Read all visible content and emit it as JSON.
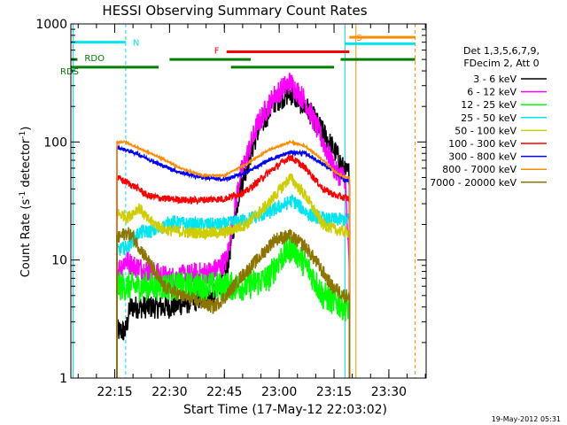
{
  "chart_data": {
    "type": "line",
    "title": "HESSI Observing Summary Count Rates",
    "xlabel": "Start Time (17-May-12 22:03:02)",
    "ylabel_main": "Count Rate (s",
    "ylabel_sup1": "-1",
    "ylabel_mid": " detector",
    "ylabel_sup2": "-1",
    "ylabel_end": ")",
    "y_scale": "log",
    "ylim": [
      1,
      1000
    ],
    "xlim_minutes": [
      22.05,
      23.67
    ],
    "x_ticks": [
      {
        "label": "22:15",
        "m": 22.25
      },
      {
        "label": "22:30",
        "m": 22.5
      },
      {
        "label": "22:45",
        "m": 22.75
      },
      {
        "label": "23:00",
        "m": 23.0
      },
      {
        "label": "23:15",
        "m": 23.25
      },
      {
        "label": "23:30",
        "m": 23.5
      }
    ],
    "y_ticks": [
      {
        "label": "1",
        "v": 1
      },
      {
        "label": "10",
        "v": 10
      },
      {
        "label": "100",
        "v": 100
      },
      {
        "label": "1000",
        "v": 1000
      }
    ],
    "legend_header": [
      "Det 1,3,5,6,7,9,",
      "FDecim 2, Att 0"
    ],
    "legend_position": "right",
    "timestamp": "19-May-2012 05:31",
    "flags": [
      {
        "label": "N",
        "color": "#00e5ee",
        "y": 700,
        "segments": [
          [
            22.05,
            22.3
          ]
        ]
      },
      {
        "label": "RDO",
        "color": "#007f00",
        "y": 500,
        "segments": [
          [
            22.05,
            22.08
          ],
          [
            22.5,
            22.87
          ]
        ]
      },
      {
        "label": "RDS",
        "color": "#007f00",
        "y": 430,
        "segments": [
          [
            22.05,
            22.45
          ],
          [
            22.78,
            23.25
          ]
        ]
      },
      {
        "label": "F",
        "color": "#ff0000",
        "y": 580,
        "segments": [
          [
            22.76,
            23.32
          ]
        ]
      },
      {
        "label": "S",
        "color": "#ff8c00",
        "y": 770,
        "segments": [
          [
            23.32,
            23.62
          ]
        ]
      },
      {
        "label": "",
        "color": "#00e5ee",
        "y": 680,
        "segments": [
          [
            23.3,
            23.62
          ]
        ]
      },
      {
        "label": "",
        "color": "#007f00",
        "y": 500,
        "segments": [
          [
            23.28,
            23.62
          ]
        ]
      }
    ],
    "vlines": [
      {
        "m": 22.06,
        "color": "#00e5ee",
        "dash": false
      },
      {
        "m": 22.3,
        "color": "#00e5ee",
        "dash": true
      },
      {
        "m": 23.3,
        "color": "#00e5ee",
        "dash": false
      },
      {
        "m": 23.35,
        "color": "#ff8c00",
        "dash": false
      },
      {
        "m": 23.62,
        "color": "#ff8c00",
        "dash": true
      }
    ],
    "series": [
      {
        "name": "3 - 6 keV",
        "color": "#000000",
        "noise": 0.2,
        "points": [
          [
            22.26,
            2.5
          ],
          [
            22.3,
            2.5
          ],
          [
            22.32,
            4
          ],
          [
            22.5,
            4
          ],
          [
            22.7,
            5
          ],
          [
            22.76,
            8
          ],
          [
            22.82,
            40
          ],
          [
            22.9,
            120
          ],
          [
            22.98,
            220
          ],
          [
            23.05,
            260
          ],
          [
            23.13,
            190
          ],
          [
            23.2,
            120
          ],
          [
            23.26,
            80
          ],
          [
            23.3,
            55
          ],
          [
            23.32,
            55
          ]
        ]
      },
      {
        "name": "6 - 12 keV",
        "color": "#ff00ff",
        "noise": 0.2,
        "points": [
          [
            22.26,
            8
          ],
          [
            22.3,
            10
          ],
          [
            22.33,
            9
          ],
          [
            22.5,
            7
          ],
          [
            22.7,
            8
          ],
          [
            22.76,
            10
          ],
          [
            22.82,
            50
          ],
          [
            22.9,
            140
          ],
          [
            22.98,
            250
          ],
          [
            23.05,
            320
          ],
          [
            23.12,
            220
          ],
          [
            23.2,
            100
          ],
          [
            23.26,
            55
          ],
          [
            23.3,
            50
          ],
          [
            23.32,
            8
          ]
        ]
      },
      {
        "name": "12 - 25 keV",
        "color": "#00ff00",
        "noise": 0.25,
        "points": [
          [
            22.26,
            6
          ],
          [
            22.5,
            6
          ],
          [
            22.7,
            6
          ],
          [
            22.85,
            6
          ],
          [
            22.95,
            7
          ],
          [
            23.0,
            10
          ],
          [
            23.06,
            13
          ],
          [
            23.14,
            8
          ],
          [
            23.2,
            5
          ],
          [
            23.3,
            4
          ],
          [
            23.32,
            4
          ]
        ]
      },
      {
        "name": "25 - 50 keV",
        "color": "#00e5ee",
        "noise": 0.12,
        "points": [
          [
            22.26,
            12
          ],
          [
            22.31,
            13
          ],
          [
            22.36,
            17
          ],
          [
            22.45,
            18
          ],
          [
            22.5,
            21
          ],
          [
            22.6,
            20
          ],
          [
            22.75,
            20
          ],
          [
            22.85,
            22
          ],
          [
            22.95,
            25
          ],
          [
            23.06,
            32
          ],
          [
            23.14,
            24
          ],
          [
            23.22,
            22
          ],
          [
            23.32,
            22
          ]
        ]
      },
      {
        "name": "50 - 100 keV",
        "color": "#cdcd00",
        "noise": 0.1,
        "points": [
          [
            22.26,
            25
          ],
          [
            22.31,
            23
          ],
          [
            22.36,
            28
          ],
          [
            22.4,
            22
          ],
          [
            22.48,
            18
          ],
          [
            22.6,
            17
          ],
          [
            22.75,
            17
          ],
          [
            22.85,
            20
          ],
          [
            22.95,
            30
          ],
          [
            23.05,
            50
          ],
          [
            23.12,
            35
          ],
          [
            23.2,
            20
          ],
          [
            23.26,
            18
          ],
          [
            23.32,
            17
          ]
        ]
      },
      {
        "name": "100 - 300 keV",
        "color": "#ff0000",
        "noise": 0.06,
        "points": [
          [
            22.26,
            50
          ],
          [
            22.31,
            45
          ],
          [
            22.36,
            40
          ],
          [
            22.4,
            35
          ],
          [
            22.48,
            33
          ],
          [
            22.6,
            32
          ],
          [
            22.75,
            33
          ],
          [
            22.85,
            38
          ],
          [
            22.95,
            55
          ],
          [
            23.05,
            75
          ],
          [
            23.12,
            60
          ],
          [
            23.2,
            40
          ],
          [
            23.26,
            35
          ],
          [
            23.32,
            33
          ]
        ]
      },
      {
        "name": "300 - 800 keV",
        "color": "#0000ff",
        "noise": 0.03,
        "points": [
          [
            22.26,
            90
          ],
          [
            22.35,
            80
          ],
          [
            22.45,
            65
          ],
          [
            22.55,
            55
          ],
          [
            22.65,
            50
          ],
          [
            22.75,
            48
          ],
          [
            22.85,
            55
          ],
          [
            22.95,
            70
          ],
          [
            23.05,
            82
          ],
          [
            23.12,
            80
          ],
          [
            23.2,
            65
          ],
          [
            23.26,
            55
          ],
          [
            23.3,
            47
          ],
          [
            23.32,
            47
          ]
        ]
      },
      {
        "name": "800 - 7000 keV",
        "color": "#ff8c00",
        "noise": 0.015,
        "points": [
          [
            22.26,
            100
          ],
          [
            22.3,
            100
          ],
          [
            22.35,
            90
          ],
          [
            22.45,
            75
          ],
          [
            22.55,
            60
          ],
          [
            22.65,
            52
          ],
          [
            22.75,
            52
          ],
          [
            22.85,
            65
          ],
          [
            22.95,
            85
          ],
          [
            23.05,
            100
          ],
          [
            23.12,
            92
          ],
          [
            23.2,
            70
          ],
          [
            23.26,
            55
          ],
          [
            23.3,
            50
          ],
          [
            23.32,
            50
          ]
        ]
      },
      {
        "name": "7000 - 20000 keV",
        "color": "#8b7500",
        "noise": 0.12,
        "points": [
          [
            22.26,
            15
          ],
          [
            22.3,
            17
          ],
          [
            22.33,
            16
          ],
          [
            22.4,
            10
          ],
          [
            22.47,
            6
          ],
          [
            22.55,
            5
          ],
          [
            22.7,
            4
          ],
          [
            22.76,
            5
          ],
          [
            22.82,
            7
          ],
          [
            22.9,
            10
          ],
          [
            22.98,
            15
          ],
          [
            23.05,
            16
          ],
          [
            23.12,
            13
          ],
          [
            23.18,
            9
          ],
          [
            23.24,
            6
          ],
          [
            23.3,
            5
          ],
          [
            23.32,
            5
          ]
        ]
      }
    ]
  }
}
